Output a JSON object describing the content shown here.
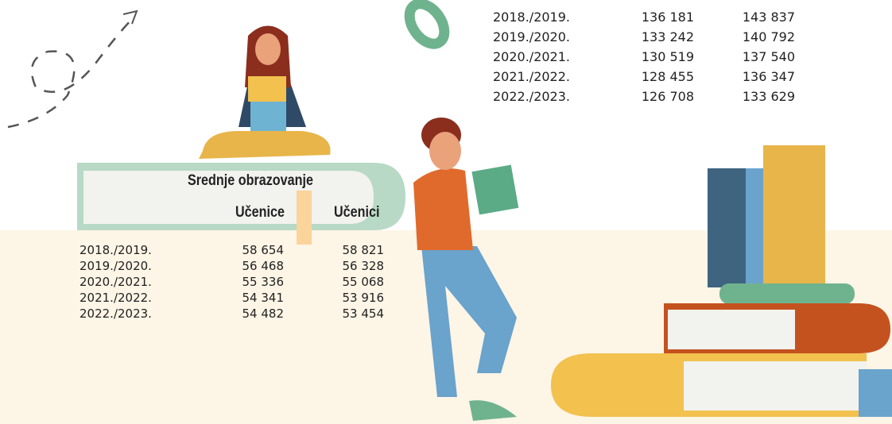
{
  "top_table": {
    "rows": [
      [
        "2018./2019.",
        "136 181",
        "143 837"
      ],
      [
        "2019./2020.",
        "133 242",
        "140 792"
      ],
      [
        "2020./2021.",
        "130 519",
        "137 540"
      ],
      [
        "2021./2022.",
        "128 455",
        "136 347"
      ],
      [
        "2022./2023.",
        "126 708",
        "133 629"
      ]
    ]
  },
  "secondary_table": {
    "title": "Srednje obrazovanje",
    "headers": [
      "Učenice",
      "Učenici"
    ],
    "rows": [
      [
        "2018./2019.",
        "58 654",
        "58 821"
      ],
      [
        "2019./2020.",
        "56 468",
        "56 328"
      ],
      [
        "2020./2021.",
        "55 336",
        "55 068"
      ],
      [
        "2021./2022.",
        "54 341",
        "53 916"
      ],
      [
        "2022./2023.",
        "54 482",
        "53 454"
      ]
    ]
  }
}
